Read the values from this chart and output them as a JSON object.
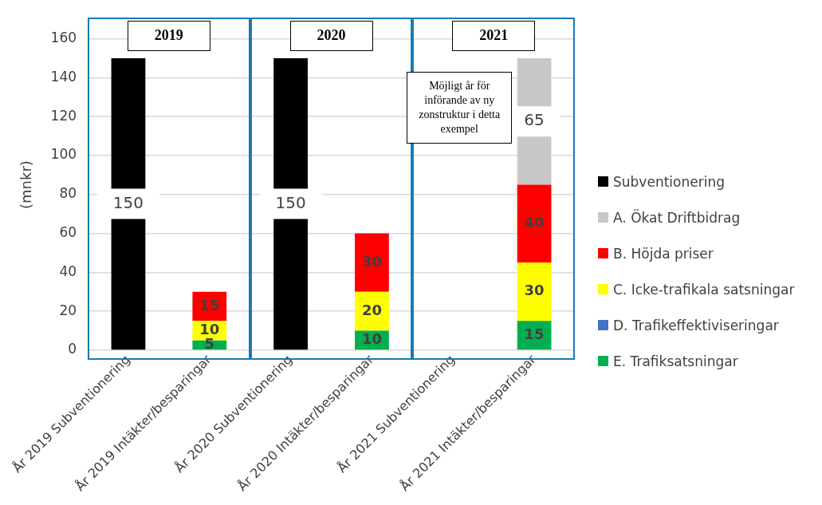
{
  "chart_data": {
    "type": "bar",
    "stacked": true,
    "ylabel": "(mnkr)",
    "categories": [
      "År 2019 Subventionering",
      "År 2019 Intäkter/besparingar",
      "År 2020 Subventionering",
      "År 2020 Intäkter/besparingar",
      "År 2021 Subventionering",
      "År 2021 Intäkter/besparingar"
    ],
    "series": [
      {
        "name": "E. Trafiksatsningar",
        "color": "#00b050",
        "values": [
          null,
          5,
          null,
          10,
          null,
          15
        ]
      },
      {
        "name": "D. Trafikeffektiviseringar",
        "color": "#4472c4",
        "values": [
          null,
          null,
          null,
          null,
          null,
          null
        ]
      },
      {
        "name": "C. Icke-trafikala satsningar",
        "color": "#ffff00",
        "values": [
          null,
          10,
          null,
          20,
          null,
          30
        ]
      },
      {
        "name": "B. Höjda priser",
        "color": "#ff0000",
        "values": [
          null,
          15,
          null,
          30,
          null,
          40
        ]
      },
      {
        "name": "A. Ökat Driftbidrag",
        "color": "#c8c8c8",
        "values": [
          null,
          null,
          null,
          null,
          null,
          65
        ]
      },
      {
        "name": "Subventionering",
        "color": "#000000",
        "values": [
          150,
          null,
          150,
          null,
          null,
          null
        ]
      }
    ],
    "ylim": [
      0,
      170
    ],
    "yticks": [
      0,
      20,
      40,
      60,
      80,
      100,
      120,
      140,
      160
    ],
    "grid": "y",
    "legend": "right",
    "data_labels": true,
    "annotations": [
      "2019",
      "2020",
      "2021",
      "Möjligt år för införande av ny zonstruktur i detta exempel"
    ]
  }
}
